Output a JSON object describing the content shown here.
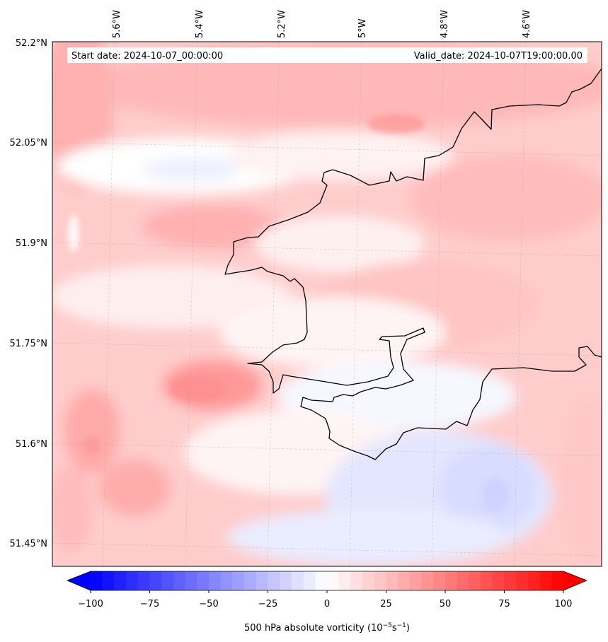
{
  "header": {
    "start_date": "Start date: 2024-10-07_00:00:00",
    "valid_date": "Valid_date: 2024-10-07T19:00:00.00"
  },
  "axes": {
    "lon_labels": [
      "5.6°W",
      "5.4°W",
      "5.2°W",
      "5°W",
      "4.8°W",
      "4.6°W"
    ],
    "lat_labels": [
      "52.2°N",
      "52.05°N",
      "51.9°N",
      "51.75°N",
      "51.6°N",
      "51.45°N"
    ]
  },
  "colorbar": {
    "ticks": [
      "−100",
      "−75",
      "−50",
      "−25",
      "0",
      "25",
      "50",
      "75",
      "100"
    ],
    "label": "500 hPa absolute vorticity (10",
    "label_exp1": "−5",
    "label_mid": "s",
    "label_exp2": "−1",
    "label_end": ")",
    "min": -100,
    "max": 100,
    "colors": {
      "negative": "#0000ff",
      "zero": "#ffffff",
      "positive": "#ff0000"
    }
  }
}
